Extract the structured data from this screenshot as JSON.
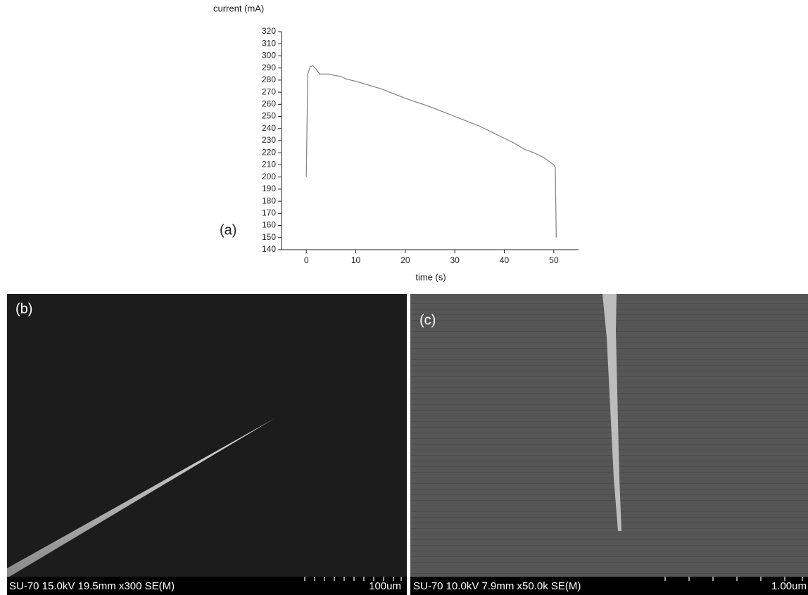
{
  "chart_data": {
    "type": "line",
    "y_label": "current (mA)",
    "x_label": "time (s)",
    "panel_label": "(a)",
    "x": [
      0,
      0.3,
      0.8,
      1.3,
      2,
      2.7,
      3.5,
      4.5,
      5.5,
      7,
      8,
      10,
      15,
      20,
      25,
      30,
      35,
      40,
      42,
      44,
      46,
      48,
      49,
      50,
      50.3,
      50.5
    ],
    "values": [
      200,
      285,
      291,
      292,
      289,
      285,
      285,
      285,
      284,
      283,
      281,
      279,
      273,
      265,
      258,
      250,
      242,
      232,
      228,
      223,
      220,
      216,
      213,
      210,
      208,
      150
    ],
    "color": "#888888",
    "xlim": [
      -5,
      55
    ],
    "xticks": [
      0,
      10,
      20,
      30,
      40,
      50
    ],
    "ylim": [
      140,
      320
    ],
    "yticks": [
      140,
      150,
      160,
      170,
      180,
      190,
      200,
      210,
      220,
      230,
      240,
      250,
      260,
      270,
      280,
      290,
      300,
      310,
      320
    ],
    "grid": false
  },
  "images": [
    {
      "label": "(b)",
      "caption": "SU-70 15.0kV 19.5mm x300 SE(M)",
      "scale": "100um"
    },
    {
      "label": "(c)",
      "caption": "SU-70 10.0kV 7.9mm x50.0k SE(M)",
      "scale": "1.00um"
    }
  ]
}
